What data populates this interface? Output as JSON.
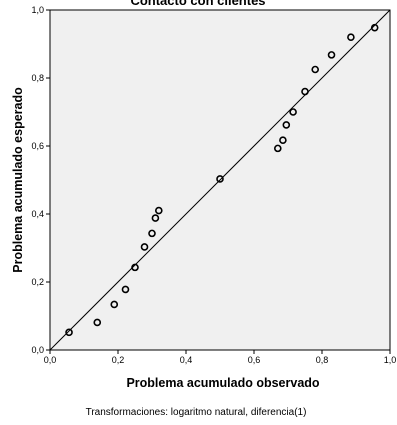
{
  "chart_data": {
    "type": "scatter",
    "title": "Contacto con clientes",
    "xlabel": "Problema acumulado observado",
    "ylabel": "Problema acumulado esperado",
    "footnote": "Transformaciones: logaritmo natural, diferencia(1)",
    "xlim": [
      0,
      1
    ],
    "ylim": [
      0,
      1
    ],
    "xticks": [
      "0,0",
      "0,2",
      "0,4",
      "0,6",
      "0,8",
      "1,0"
    ],
    "yticks": [
      "0,0",
      "0,2",
      "0,4",
      "0,6",
      "0,8",
      "1,0"
    ],
    "grid": false,
    "reference_line": {
      "x": [
        0,
        1
      ],
      "y": [
        0,
        1
      ]
    },
    "series": [
      {
        "points": [
          {
            "x": 0.056,
            "y": 0.052
          },
          {
            "x": 0.139,
            "y": 0.081
          },
          {
            "x": 0.189,
            "y": 0.134
          },
          {
            "x": 0.222,
            "y": 0.178
          },
          {
            "x": 0.25,
            "y": 0.243
          },
          {
            "x": 0.278,
            "y": 0.303
          },
          {
            "x": 0.3,
            "y": 0.343
          },
          {
            "x": 0.31,
            "y": 0.388
          },
          {
            "x": 0.32,
            "y": 0.41
          },
          {
            "x": 0.5,
            "y": 0.503
          },
          {
            "x": 0.67,
            "y": 0.593
          },
          {
            "x": 0.685,
            "y": 0.617
          },
          {
            "x": 0.695,
            "y": 0.662
          },
          {
            "x": 0.715,
            "y": 0.7
          },
          {
            "x": 0.75,
            "y": 0.76
          },
          {
            "x": 0.78,
            "y": 0.825
          },
          {
            "x": 0.828,
            "y": 0.868
          },
          {
            "x": 0.885,
            "y": 0.92
          },
          {
            "x": 0.955,
            "y": 0.948
          }
        ]
      }
    ],
    "colors": {
      "plot_background": "#f0f0f0",
      "marker_stroke": "#000000",
      "line": "#000000",
      "axis": "#000000"
    }
  }
}
